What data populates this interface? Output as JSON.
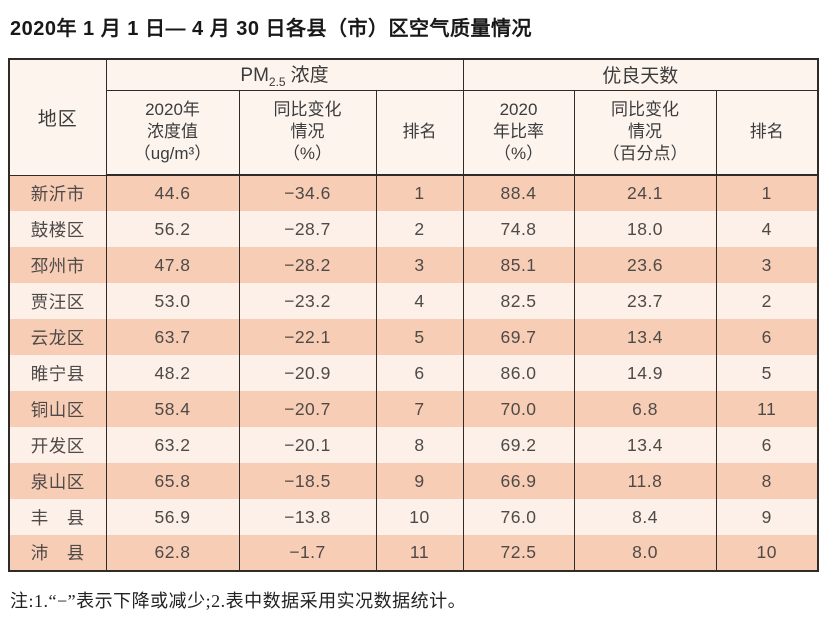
{
  "page": {
    "title": "2020年 1 月 1 日— 4 月 30 日各县（市）区空气质量情况",
    "footnote": "注:1.“−”表示下降或减少;2.表中数据采用实况数据统计。"
  },
  "colors": {
    "border": "#2e2b29",
    "header_bg": "#fdf4ee",
    "dark_row": "#f8cdb6",
    "light_row": "#fcf0e9"
  },
  "table": {
    "corner_header": "地区",
    "group_headers": {
      "pm": {
        "prefix": "PM",
        "sub": "2.5",
        "suffix": "浓度"
      },
      "good_days": "优良天数"
    },
    "sub_headers": [
      "2020年\n浓度值\n（ug/m³）",
      "同比变化\n情况\n（%）",
      "排名",
      "2020\n年比率\n（%）",
      "同比变化\n情况\n（百分点）",
      "排名"
    ],
    "rows": [
      {
        "region": "新沂市",
        "values": [
          "44.6",
          "−34.6",
          "1",
          "88.4",
          "24.1",
          "1"
        ]
      },
      {
        "region": "鼓楼区",
        "values": [
          "56.2",
          "−28.7",
          "2",
          "74.8",
          "18.0",
          "4"
        ]
      },
      {
        "region": "邳州市",
        "values": [
          "47.8",
          "−28.2",
          "3",
          "85.1",
          "23.6",
          "3"
        ]
      },
      {
        "region": "贾汪区",
        "values": [
          "53.0",
          "−23.2",
          "4",
          "82.5",
          "23.7",
          "2"
        ]
      },
      {
        "region": "云龙区",
        "values": [
          "63.7",
          "−22.1",
          "5",
          "69.7",
          "13.4",
          "6"
        ]
      },
      {
        "region": "睢宁县",
        "values": [
          "48.2",
          "−20.9",
          "6",
          "86.0",
          "14.9",
          "5"
        ]
      },
      {
        "region": "铜山区",
        "values": [
          "58.4",
          "−20.7",
          "7",
          "70.0",
          "6.8",
          "11"
        ]
      },
      {
        "region": "开发区",
        "values": [
          "63.2",
          "−20.1",
          "8",
          "69.2",
          "13.4",
          "6"
        ]
      },
      {
        "region": "泉山区",
        "values": [
          "65.8",
          "−18.5",
          "9",
          "66.9",
          "11.8",
          "8"
        ]
      },
      {
        "region": "丰　县",
        "values": [
          "56.9",
          "−13.8",
          "10",
          "76.0",
          "8.4",
          "9"
        ]
      },
      {
        "region": "沛　县",
        "values": [
          "62.8",
          "−1.7",
          "11",
          "72.5",
          "8.0",
          "10"
        ]
      }
    ]
  }
}
